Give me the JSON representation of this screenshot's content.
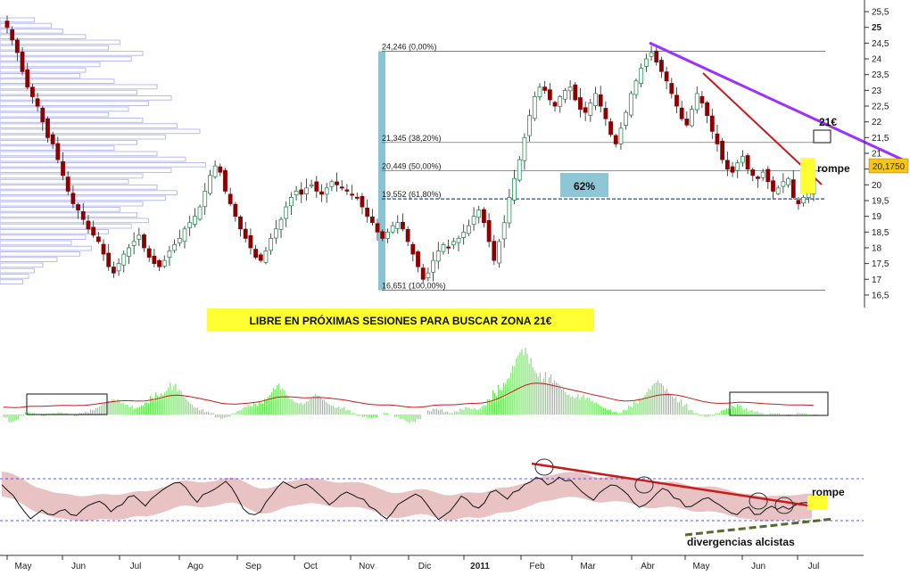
{
  "chart_data": [
    {
      "type": "candlestick",
      "title": "",
      "y_ticks": [
        "25,5",
        "25",
        "24,5",
        "24",
        "23,5",
        "23",
        "22,5",
        "22",
        "21,5",
        "21",
        "20,5",
        "20",
        "19,5",
        "19",
        "18,5",
        "18",
        "17,5",
        "17",
        "16,5"
      ],
      "ylim": [
        16.3,
        25.7
      ],
      "last_price_label": "20,1750",
      "fibonacci": [
        {
          "label": "24,246 (0,00%)",
          "value": 24.246
        },
        {
          "label": "21,345 (38,20%)",
          "value": 21.345
        },
        {
          "label": "20,449 (50,00%)",
          "value": 20.449
        },
        {
          "label": "19,552 (61,80%)",
          "value": 19.552
        },
        {
          "label": "16,651 (100,00%)",
          "value": 16.651
        }
      ],
      "annotations": {
        "pct_box": "62%",
        "target": "21€",
        "breakout": "rompe",
        "banner": "LIBRE EN PRÓXIMAS SESIONES PARA BUSCAR ZONA 21€"
      },
      "closes": [
        25.0,
        24.6,
        24.2,
        23.6,
        23.1,
        22.8,
        22.5,
        22.0,
        21.5,
        21.3,
        20.8,
        20.3,
        19.8,
        19.4,
        19.2,
        18.9,
        18.6,
        18.4,
        18.2,
        17.8,
        17.4,
        17.2,
        17.5,
        17.8,
        18.0,
        18.2,
        18.4,
        18.0,
        17.7,
        17.5,
        17.4,
        17.6,
        17.9,
        18.1,
        18.3,
        18.6,
        18.8,
        19.0,
        19.3,
        19.8,
        20.3,
        20.6,
        20.4,
        19.8,
        19.4,
        19.0,
        18.6,
        18.3,
        18.0,
        17.7,
        17.6,
        17.9,
        18.3,
        18.6,
        18.9,
        19.3,
        19.6,
        19.8,
        19.7,
        19.9,
        20.0,
        19.8,
        19.7,
        19.9,
        20.1,
        20.0,
        19.9,
        19.8,
        19.7,
        19.6,
        19.3,
        19.0,
        18.8,
        18.5,
        18.3,
        18.5,
        18.7,
        18.8,
        18.6,
        18.2,
        17.8,
        17.4,
        17.0,
        17.2,
        17.6,
        17.9,
        18.1,
        18.0,
        18.2,
        18.3,
        18.5,
        18.7,
        19.0,
        19.2,
        18.8,
        18.2,
        17.6,
        18.2,
        18.8,
        19.6,
        20.2,
        20.8,
        21.5,
        22.2,
        22.8,
        23.1,
        23.0,
        22.7,
        22.5,
        22.8,
        23.0,
        23.1,
        22.7,
        22.4,
        22.3,
        22.6,
        22.9,
        22.5,
        22.1,
        21.6,
        21.3,
        21.8,
        22.3,
        22.9,
        23.3,
        23.7,
        24.0,
        24.2,
        23.9,
        23.6,
        23.3,
        22.9,
        22.5,
        22.1,
        21.9,
        22.4,
        22.9,
        22.6,
        22.2,
        21.7,
        21.3,
        20.8,
        20.5,
        20.4,
        20.7,
        20.9,
        20.5,
        20.3,
        20.2,
        20.4,
        20.1,
        19.8,
        19.9,
        20.1,
        20.2,
        19.6,
        19.4,
        19.6,
        19.8,
        20.2
      ],
      "volume_profile": [
        0.12,
        0.18,
        0.22,
        0.3,
        0.42,
        0.38,
        0.5,
        0.46,
        0.35,
        0.3,
        0.28,
        0.4,
        0.55,
        0.48,
        0.6,
        0.52,
        0.45,
        0.38,
        0.5,
        0.62,
        0.7,
        0.58,
        0.48,
        0.4,
        0.55,
        0.65,
        0.72,
        0.6,
        0.5,
        0.45,
        0.55,
        0.62,
        0.58,
        0.5,
        0.42,
        0.48,
        0.52,
        0.46,
        0.38,
        0.3,
        0.25,
        0.32,
        0.28,
        0.2,
        0.15,
        0.12,
        0.1,
        0.08
      ]
    },
    {
      "type": "histogram",
      "title": "",
      "values": [
        -0.2,
        -0.5,
        -0.4,
        -0.1,
        0.2,
        0.1,
        0.0,
        -0.1,
        0.05,
        0.1,
        0.2,
        0.1,
        0.0,
        -0.1,
        0.1,
        0.2,
        0.4,
        0.6,
        0.8,
        0.9,
        1.0,
        1.0,
        0.9,
        0.7,
        0.5,
        0.6,
        0.8,
        1.2,
        1.6,
        1.8,
        2.2,
        2.0,
        1.6,
        1.2,
        0.9,
        0.6,
        0.4,
        0.2,
        0.1,
        -0.2,
        -0.3,
        -0.2,
        0.1,
        0.3,
        0.5,
        0.6,
        0.8,
        1.0,
        1.4,
        1.8,
        2.0,
        1.7,
        1.3,
        1.1,
        1.0,
        0.9,
        1.1,
        1.3,
        1.2,
        1.0,
        0.8,
        0.6,
        0.5,
        0.3,
        0.1,
        -0.1,
        -0.2,
        -0.3,
        -0.2,
        0.0,
        0.1,
        0.0,
        -0.2,
        -0.4,
        -0.6,
        -0.5,
        -0.3,
        0.0,
        0.3,
        0.5,
        0.4,
        0.2,
        0.1,
        0.2,
        0.4,
        0.6,
        0.5,
        0.4,
        0.6,
        1.0,
        1.6,
        2.2,
        2.8,
        3.3,
        3.8,
        4.2,
        4.3,
        4.0,
        3.5,
        3.0,
        2.6,
        2.2,
        2.0,
        1.8,
        1.6,
        1.5,
        1.3,
        1.1,
        0.9,
        0.8,
        0.6,
        0.4,
        0.2,
        0.1,
        0.3,
        0.6,
        1.0,
        1.4,
        1.8,
        2.0,
        2.2,
        2.0,
        1.8,
        1.5,
        1.1,
        0.7,
        0.3,
        0.1,
        -0.1,
        -0.2,
        -0.1,
        0.1,
        0.3,
        0.4,
        0.6,
        0.8,
        0.5,
        0.3,
        0.2,
        0.1,
        0.0,
        0.1,
        0.1,
        0.0,
        -0.1,
        0.0,
        0.1,
        0.1,
        0.0,
        -0.1
      ]
    },
    {
      "type": "line",
      "title": "",
      "values": [
        0.7,
        0.5,
        0.2,
        -0.2,
        -0.5,
        -0.7,
        -0.6,
        -0.4,
        -0.5,
        -0.6,
        -0.4,
        -0.3,
        -0.5,
        -0.6,
        -0.4,
        -0.2,
        -0.1,
        0.0,
        -0.2,
        -0.4,
        -0.3,
        -0.1,
        0.1,
        0.2,
        0.0,
        -0.2,
        0.1,
        0.3,
        0.5,
        0.6,
        0.8,
        0.7,
        0.5,
        0.2,
        0.0,
        0.2,
        0.4,
        0.5,
        0.7,
        0.8,
        0.6,
        0.2,
        -0.3,
        -0.5,
        -0.6,
        -0.4,
        0.0,
        0.3,
        0.6,
        0.8,
        0.7,
        0.5,
        0.6,
        0.7,
        0.5,
        0.3,
        0.1,
        -0.1,
        0.0,
        0.2,
        0.4,
        0.3,
        0.2,
        0.0,
        -0.2,
        -0.4,
        -0.6,
        -0.7,
        -0.5,
        -0.2,
        0.0,
        0.2,
        0.3,
        0.1,
        -0.2,
        -0.5,
        -0.7,
        -0.6,
        -0.4,
        -0.1,
        0.2,
        0.0,
        -0.2,
        -0.3,
        0.0,
        0.3,
        0.5,
        0.3,
        0.1,
        0.3,
        0.5,
        0.7,
        0.8,
        1.0,
        0.9,
        0.7,
        0.8,
        1.0,
        0.9,
        0.8,
        0.6,
        0.4,
        0.2,
        0.0,
        0.3,
        0.5,
        0.7,
        0.6,
        0.4,
        0.2,
        0.0,
        -0.2,
        -0.1,
        0.1,
        0.3,
        0.5,
        0.4,
        0.2,
        0.0,
        -0.2,
        -0.3,
        -0.1,
        0.1,
        0.2,
        0.0,
        -0.2,
        -0.4,
        -0.5,
        -0.6,
        -0.4,
        -0.3,
        -0.5,
        -0.6,
        -0.4,
        -0.2,
        -0.3,
        -0.2,
        -0.3,
        -0.2,
        -0.1,
        0.0,
        -0.2
      ],
      "x_labels": [
        "May",
        "Jun",
        "Jul",
        "Ago",
        "Sep",
        "Oct",
        "Nov",
        "Dic",
        "2011",
        "Feb",
        "Mar",
        "Abr",
        "May",
        "Jun",
        "Jul"
      ],
      "annotations": {
        "breakout": "rompe",
        "divergence": "divergencias alcistas"
      }
    }
  ],
  "colors": {
    "up_candle": "#2e8b57",
    "down_candle": "#8b0000",
    "fib_blue": "#89c4d4",
    "purple_line": "#9b30ff",
    "red_line": "#cc1a1a",
    "highlight": "#ffff33",
    "volume_profile": "#b9bcef",
    "histogram": "#66dd55",
    "band": "#e9c3c3",
    "dashed_blue": "#2b2bcc",
    "divergence": "#556b2f"
  }
}
